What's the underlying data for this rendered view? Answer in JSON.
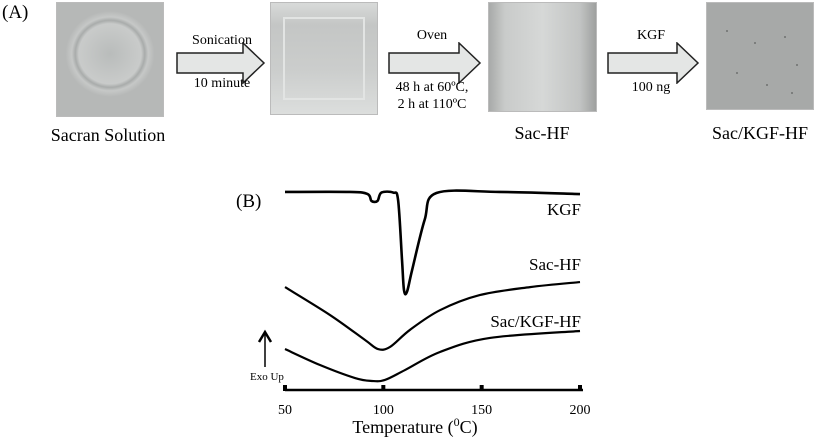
{
  "panel_a": {
    "label": "(A)",
    "steps": [
      {
        "caption": "Sacran Solution"
      },
      {
        "caption": ""
      },
      {
        "caption": "Sac-HF"
      },
      {
        "caption": "Sac/KGF-HF"
      }
    ],
    "arrows": [
      {
        "above": "Sonication",
        "below": [
          "10 minute"
        ]
      },
      {
        "above": "Oven",
        "below": [
          "48 h at 60ºC,",
          "2 h at 110ºC"
        ]
      },
      {
        "above": "KGF",
        "below": [
          "100 ng"
        ]
      }
    ]
  },
  "panel_b": {
    "label": "(B)",
    "exo_label": "Exo Up"
  },
  "chart_data": {
    "type": "line",
    "title": "",
    "xlabel": "Temperature (⁰C)",
    "xlabel_main": "Temperature (",
    "xlabel_sup": "0",
    "xlabel_end": "C)",
    "ylabel": "",
    "xlim": [
      50,
      200
    ],
    "xticks": [
      50,
      100,
      150,
      200
    ],
    "y_units": "arbitrary heat flow (exo up), curves offset",
    "grid": false,
    "series": [
      {
        "name": "KGF",
        "x": [
          50,
          83,
          92,
          94,
          97,
          99,
          105,
          107.5,
          109.5,
          110.5,
          112,
          114.6,
          121,
          127,
          159,
          200
        ],
        "y": [
          94.3,
          94.3,
          93.3,
          90,
          90,
          94,
          94,
          90.5,
          61.9,
          47.6,
          46.7,
          57,
          81,
          93.8,
          94.3,
          93.3
        ]
      },
      {
        "name": "Sac-HF",
        "x": [
          50,
          72.9,
          90.7,
          97.3,
          103.4,
          113.5,
          128.8,
          149,
          174.6,
          200
        ],
        "y": [
          49,
          35.7,
          23.8,
          19.5,
          20.5,
          28.6,
          38,
          45.2,
          49,
          51.4
        ]
      },
      {
        "name": "Sac/KGF-HF",
        "x": [
          50,
          67.8,
          85.6,
          94.2,
          100.8,
          111,
          128.8,
          154.2,
          200
        ],
        "y": [
          19.5,
          11.9,
          5.7,
          4.3,
          4.8,
          9.5,
          18.1,
          24.8,
          28.1
        ]
      }
    ]
  }
}
